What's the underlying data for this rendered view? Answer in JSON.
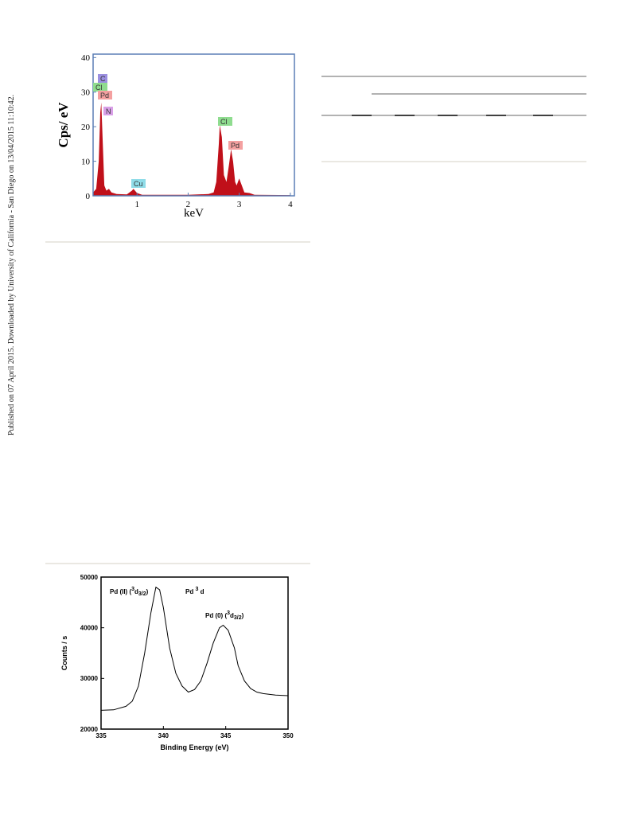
{
  "sidebar_text": "Published on 07 April 2015. Downloaded by University of California - San Diego on 13/04/2015 11:10:42.",
  "chart_data": [
    {
      "type": "area",
      "xlabel": "keV",
      "ylabel": "Cps/ eV",
      "color": "#c0101a",
      "xlim": [
        0.14,
        4.08
      ],
      "xticks": [
        1,
        2,
        3,
        4
      ],
      "ylim": [
        0,
        41
      ],
      "yticks": [
        0,
        10,
        20,
        30,
        40
      ],
      "x": [
        0.14,
        0.2,
        0.25,
        0.28,
        0.3,
        0.33,
        0.36,
        0.4,
        0.45,
        0.5,
        0.6,
        0.8,
        0.9,
        0.93,
        1.0,
        1.1,
        1.5,
        2.0,
        2.4,
        2.5,
        2.55,
        2.6,
        2.62,
        2.66,
        2.7,
        2.75,
        2.8,
        2.84,
        2.88,
        2.92,
        2.95,
        3.0,
        3.05,
        3.1,
        3.2,
        3.3,
        4.0
      ],
      "values": [
        1,
        2,
        10,
        24,
        27,
        15,
        3,
        1.5,
        2,
        1,
        0.5,
        0.4,
        1.5,
        2,
        0.8,
        0.3,
        0.3,
        0.3,
        0.5,
        1,
        4,
        15,
        20.5,
        17,
        6,
        4,
        9,
        13.5,
        10,
        4,
        3,
        5,
        3,
        1,
        0.8,
        0.3,
        0.2
      ],
      "annotations": [
        {
          "text": "C",
          "color": "#9b8fe0"
        },
        {
          "text": "Cl",
          "color": "#8fdc8f"
        },
        {
          "text": "Pd",
          "color": "#f4a0a0"
        },
        {
          "text": "N",
          "color": "#d9a0e8"
        },
        {
          "text": "Cu",
          "color": "#8fdce8"
        },
        {
          "text": "Cl",
          "color": "#8fdc8f"
        },
        {
          "text": "Pd",
          "color": "#f4a0a0"
        }
      ]
    },
    {
      "type": "line",
      "xlabel": "Binding Energy (eV)",
      "ylabel": "Counts / s",
      "color": "#000000",
      "xlim": [
        335,
        350
      ],
      "xticks": [
        335,
        340,
        345,
        350
      ],
      "ylim": [
        20000,
        50000
      ],
      "yticks": [
        20000,
        30000,
        40000,
        50000
      ],
      "x": [
        335,
        336,
        337,
        337.5,
        338,
        338.5,
        339,
        339.4,
        339.7,
        340,
        340.5,
        341,
        341.5,
        342,
        342.5,
        343,
        343.5,
        344,
        344.5,
        344.8,
        345.2,
        345.7,
        346,
        346.5,
        347,
        347.5,
        348,
        349,
        350
      ],
      "values": [
        23700,
        23800,
        24500,
        25500,
        28500,
        35000,
        43000,
        48000,
        47500,
        44000,
        36000,
        31000,
        28500,
        27300,
        27800,
        29500,
        33000,
        37000,
        40000,
        40500,
        39500,
        36000,
        32500,
        29500,
        28000,
        27300,
        27000,
        26700,
        26600
      ],
      "annotations": [
        {
          "parts": [
            "Pd (II) (",
            "3",
            "d",
            "3/2",
            ")"
          ]
        },
        {
          "parts": [
            "Pd ",
            "3",
            " d"
          ]
        },
        {
          "parts": [
            "Pd (0) (",
            "3",
            "d",
            "3/2",
            ")"
          ]
        }
      ]
    }
  ]
}
